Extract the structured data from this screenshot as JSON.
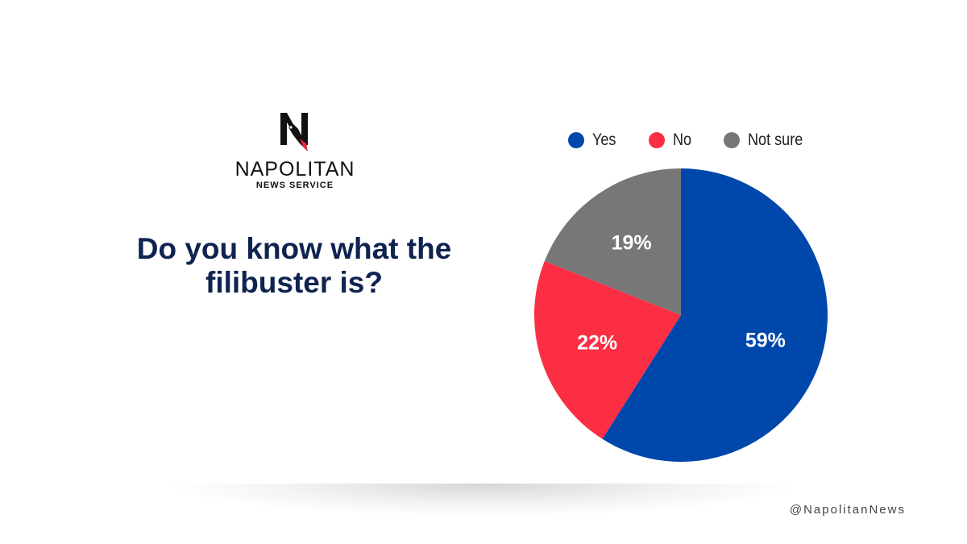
{
  "logo": {
    "letter": "N",
    "name": "NAPOLITAN",
    "subtitle": "NEWS SERVICE"
  },
  "question": "Do you know what the filibuster is?",
  "handle": "@NapolitanNews",
  "colors": {
    "yes": "#0047ab",
    "no": "#fc2e44",
    "not_sure": "#777777",
    "question": "#0f2350"
  },
  "chart_data": {
    "type": "pie",
    "title": "Do you know what the filibuster is?",
    "categories": [
      "Yes",
      "No",
      "Not sure"
    ],
    "values": [
      59,
      22,
      19
    ],
    "labels": [
      "59%",
      "22%",
      "19%"
    ],
    "colors": [
      "#0047ab",
      "#fc2e44",
      "#777777"
    ],
    "legend": "top",
    "start_angle": "12 o'clock, clockwise"
  }
}
